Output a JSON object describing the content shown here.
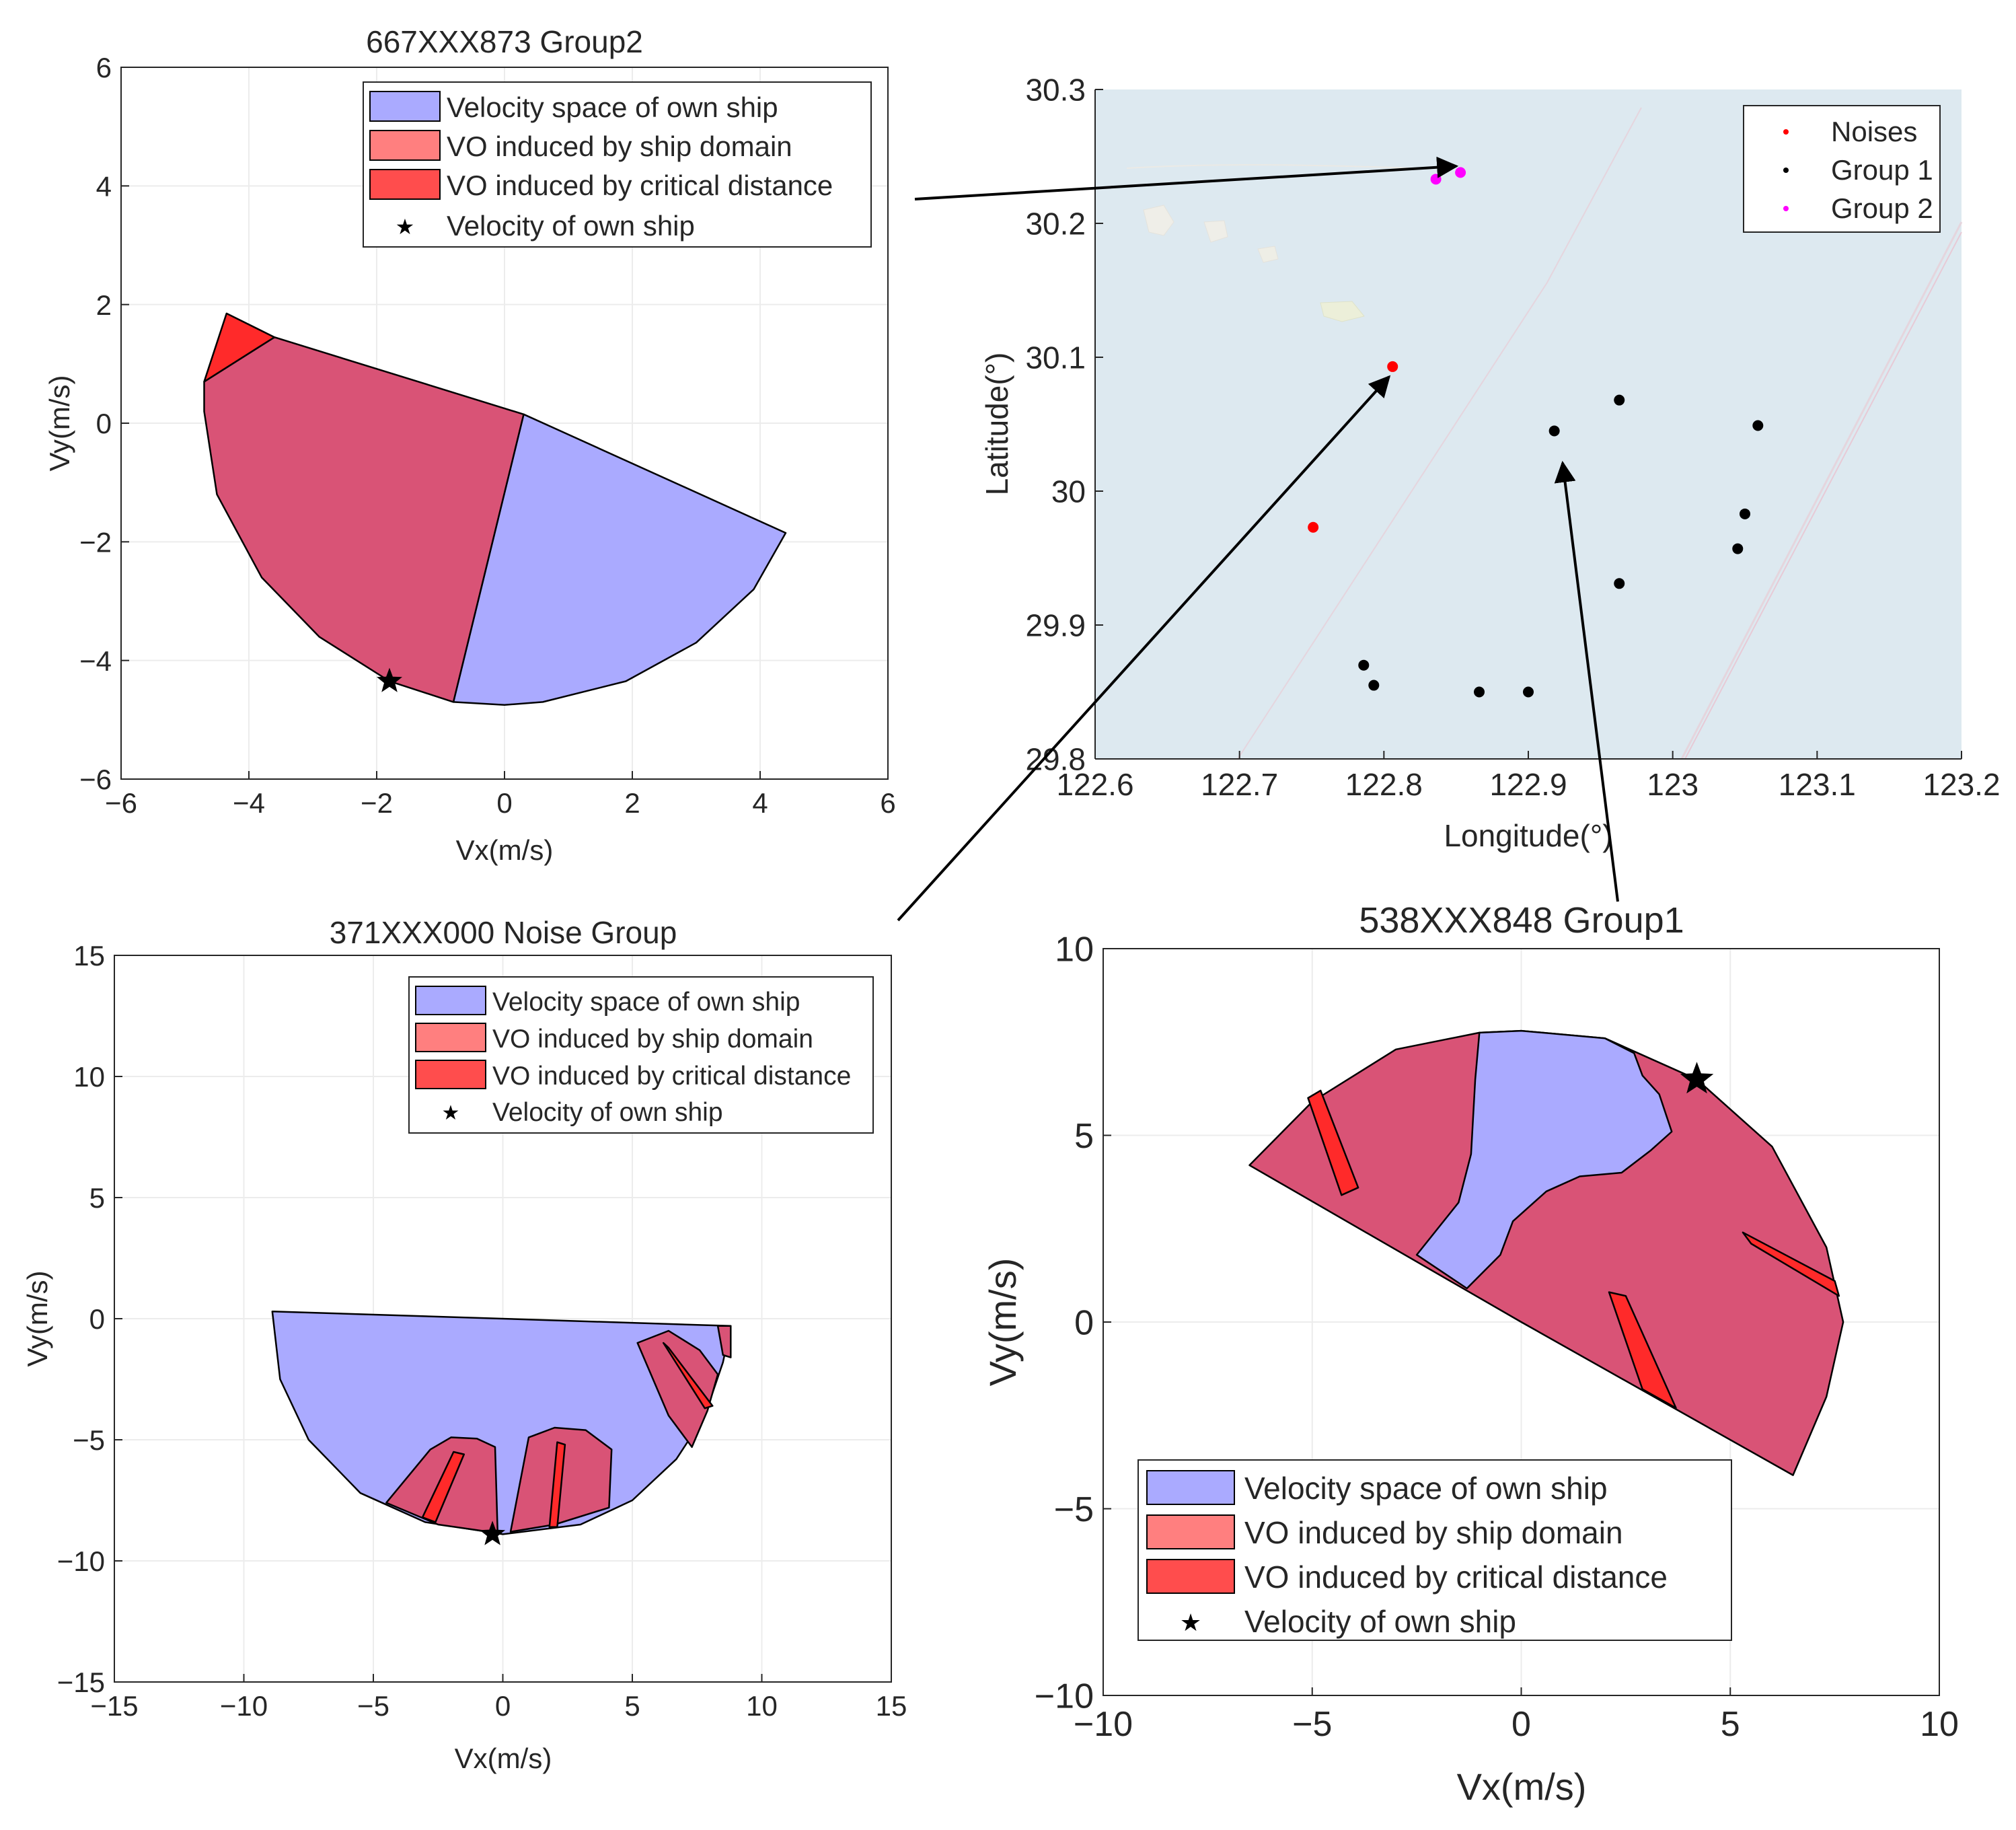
{
  "legend_common": {
    "own_space": "Velocity space of own ship",
    "vo_domain": "VO induced by ship domain",
    "vo_critical": "VO induced by critical distance",
    "own_velocity": "Velocity of own ship"
  },
  "colors": {
    "own_space": "#aaaaff",
    "vo_domain": "#d95376",
    "vo_domain_legend": "#ff7f7f",
    "vo_critical": "#ff2a2a",
    "sea": "#dde9f0",
    "noise": "#ff0000",
    "group1": "#000000",
    "group2": "#ff00ff"
  },
  "chart_data": [
    {
      "id": "p1",
      "type": "area",
      "title": "667XXX873 Group2",
      "xlabel": "Vx(m/s)",
      "ylabel": "Vy(m/s)",
      "xlim": [
        -6,
        6
      ],
      "ylim": [
        -6,
        6
      ],
      "xticks": [
        -6,
        -4,
        -2,
        0,
        2,
        4,
        6
      ],
      "yticks": [
        -6,
        -4,
        -2,
        0,
        2,
        4,
        6
      ],
      "grid": true,
      "legend_position": "top-right",
      "own_velocity": [
        -1.8,
        -4.35
      ],
      "regions": [
        {
          "kind": "own_space",
          "points": [
            [
              0.3,
              0.15
            ],
            [
              4.4,
              -1.85
            ],
            [
              3.9,
              -2.8
            ],
            [
              3.0,
              -3.7
            ],
            [
              1.9,
              -4.35
            ],
            [
              0.6,
              -4.7
            ],
            [
              0,
              -4.75
            ],
            [
              -0.8,
              -4.7
            ]
          ]
        },
        {
          "kind": "vo_domain",
          "points": [
            [
              -3.6,
              1.45
            ],
            [
              0.3,
              0.15
            ],
            [
              -0.8,
              -4.7
            ],
            [
              -1.8,
              -4.35
            ],
            [
              -2.9,
              -3.6
            ],
            [
              -3.8,
              -2.6
            ],
            [
              -4.5,
              -1.2
            ],
            [
              -4.7,
              0.2
            ],
            [
              -4.7,
              0.7
            ]
          ]
        },
        {
          "kind": "vo_critical",
          "points": [
            [
              -4.35,
              1.85
            ],
            [
              -3.6,
              1.45
            ],
            [
              -4.7,
              0.7
            ]
          ]
        }
      ]
    },
    {
      "id": "p2",
      "type": "scatter",
      "xlabel": "Longitude(°)",
      "ylabel": "Latitude(°)",
      "xlim": [
        122.6,
        123.2
      ],
      "ylim": [
        29.8,
        30.3
      ],
      "xticks": [
        122.6,
        122.7,
        122.8,
        122.9,
        123,
        123.1,
        123.2
      ],
      "xtick_labels": [
        "122.6",
        "122.7",
        "122.8",
        "122.9",
        "123",
        "123.1",
        "123.2"
      ],
      "yticks": [
        29.8,
        29.9,
        30,
        30.1,
        30.2,
        30.3
      ],
      "ytick_labels": [
        "29.8",
        "29.9",
        "30",
        "30.1",
        "30.2",
        "30.3"
      ],
      "legend_position": "top-right",
      "series": [
        {
          "name": "Noises",
          "kind": "noise",
          "points": [
            [
              122.806,
              30.093
            ],
            [
              122.751,
              29.973
            ]
          ]
        },
        {
          "name": "Group 1",
          "kind": "group1",
          "points": [
            [
              122.963,
              30.068
            ],
            [
              122.918,
              30.045
            ],
            [
              123.059,
              30.049
            ],
            [
              123.05,
              29.983
            ],
            [
              123.045,
              29.957
            ],
            [
              122.963,
              29.931
            ],
            [
              122.786,
              29.87
            ],
            [
              122.793,
              29.855
            ],
            [
              122.866,
              29.85
            ],
            [
              122.9,
              29.85
            ]
          ]
        },
        {
          "name": "Group 2",
          "kind": "group2",
          "points": [
            [
              122.836,
              30.233
            ],
            [
              122.853,
              30.238
            ]
          ]
        }
      ]
    },
    {
      "id": "p3",
      "type": "area",
      "title": "371XXX000 Noise Group",
      "xlabel": "Vx(m/s)",
      "ylabel": "Vy(m/s)",
      "xlim": [
        -15,
        15
      ],
      "ylim": [
        -15,
        15
      ],
      "xticks": [
        -15,
        -10,
        -5,
        0,
        5,
        10,
        15
      ],
      "yticks": [
        -15,
        -10,
        -5,
        0,
        5,
        10,
        15
      ],
      "grid": true,
      "legend_position": "top-right",
      "own_velocity": [
        -0.4,
        -8.9
      ],
      "regions": [
        {
          "kind": "own_space",
          "points": [
            [
              -8.9,
              0.3
            ],
            [
              8.8,
              -0.3
            ],
            [
              8.5,
              -1.8
            ],
            [
              7.8,
              -4.0
            ],
            [
              6.7,
              -5.8
            ],
            [
              5.0,
              -7.5
            ],
            [
              3.0,
              -8.5
            ],
            [
              0,
              -8.9
            ],
            [
              -3.0,
              -8.4
            ],
            [
              -5.5,
              -7.2
            ],
            [
              -7.5,
              -5.0
            ],
            [
              -8.6,
              -2.5
            ]
          ]
        },
        {
          "kind": "vo_domain",
          "points": [
            [
              -4.5,
              -7.6
            ],
            [
              -2.8,
              -5.4
            ],
            [
              -2.0,
              -4.9
            ],
            [
              -1.0,
              -4.95
            ],
            [
              -0.3,
              -5.3
            ],
            [
              -0.2,
              -8.85
            ],
            [
              -2.5,
              -8.5
            ]
          ]
        },
        {
          "kind": "vo_domain",
          "points": [
            [
              0.3,
              -8.8
            ],
            [
              1.0,
              -4.9
            ],
            [
              2.0,
              -4.5
            ],
            [
              3.2,
              -4.6
            ],
            [
              4.2,
              -5.4
            ],
            [
              4.1,
              -7.8
            ],
            [
              2.0,
              -8.5
            ]
          ]
        },
        {
          "kind": "vo_domain",
          "points": [
            [
              5.2,
              -1.0
            ],
            [
              6.4,
              -0.5
            ],
            [
              7.6,
              -1.3
            ],
            [
              8.3,
              -2.3
            ],
            [
              7.9,
              -3.8
            ],
            [
              7.3,
              -5.3
            ],
            [
              6.4,
              -4.0
            ]
          ]
        },
        {
          "kind": "vo_domain",
          "points": [
            [
              8.3,
              -0.3
            ],
            [
              8.8,
              -0.3
            ],
            [
              8.8,
              -1.6
            ],
            [
              8.5,
              -1.5
            ]
          ]
        },
        {
          "kind": "vo_critical",
          "points": [
            [
              -1.9,
              -5.5
            ],
            [
              -1.5,
              -5.6
            ],
            [
              -2.6,
              -8.4
            ],
            [
              -3.1,
              -8.2
            ]
          ]
        },
        {
          "kind": "vo_critical",
          "points": [
            [
              2.1,
              -5.1
            ],
            [
              2.4,
              -5.2
            ],
            [
              2.1,
              -8.6
            ],
            [
              1.8,
              -8.6
            ]
          ]
        },
        {
          "kind": "vo_critical",
          "points": [
            [
              6.2,
              -1.0
            ],
            [
              6.4,
              -1.2
            ],
            [
              8.1,
              -3.6
            ],
            [
              7.8,
              -3.7
            ]
          ]
        }
      ]
    },
    {
      "id": "p4",
      "type": "area",
      "title": "538XXX848 Group1",
      "xlabel": "Vx(m/s)",
      "ylabel": "Vy(m/s)",
      "xlim": [
        -10,
        10
      ],
      "ylim": [
        -10,
        10
      ],
      "xticks": [
        -10,
        -5,
        0,
        5,
        10
      ],
      "yticks": [
        -10,
        -5,
        0,
        5,
        10
      ],
      "grid": true,
      "legend_position": "bottom-left",
      "own_velocity": [
        4.2,
        6.5
      ],
      "regions": [
        {
          "kind": "vo_domain",
          "points": [
            [
              -6.5,
              4.2
            ],
            [
              -5.0,
              5.9
            ],
            [
              -3.0,
              7.3
            ],
            [
              -1.0,
              7.75
            ],
            [
              0,
              7.8
            ],
            [
              2.0,
              7.6
            ],
            [
              4.2,
              6.5
            ],
            [
              6.0,
              4.7
            ],
            [
              7.3,
              2.0
            ],
            [
              7.7,
              0
            ],
            [
              7.3,
              -2.0
            ],
            [
              6.5,
              -4.1
            ],
            [
              0,
              0
            ]
          ]
        },
        {
          "kind": "own_space",
          "points": [
            [
              -1.0,
              7.75
            ],
            [
              0,
              7.8
            ],
            [
              2.0,
              7.6
            ],
            [
              2.7,
              7.2
            ],
            [
              2.9,
              6.6
            ],
            [
              3.3,
              6.1
            ],
            [
              3.6,
              5.1
            ],
            [
              3.1,
              4.6
            ],
            [
              2.4,
              4.0
            ],
            [
              1.4,
              3.9
            ],
            [
              0.6,
              3.5
            ],
            [
              -0.2,
              2.7
            ],
            [
              -0.5,
              1.8
            ],
            [
              -1.3,
              0.9
            ],
            [
              -2.5,
              1.8
            ],
            [
              -1.5,
              3.2
            ],
            [
              -1.2,
              4.5
            ],
            [
              -1.1,
              6.5
            ]
          ]
        },
        {
          "kind": "vo_critical",
          "points": [
            [
              -5.1,
              6.0
            ],
            [
              -4.8,
              6.2
            ],
            [
              -3.9,
              3.6
            ],
            [
              -4.3,
              3.4
            ]
          ]
        },
        {
          "kind": "vo_critical",
          "points": [
            [
              5.3,
              2.4
            ],
            [
              5.5,
              2.1
            ],
            [
              7.6,
              0.7
            ],
            [
              7.5,
              1.1
            ]
          ]
        },
        {
          "kind": "vo_critical",
          "points": [
            [
              2.1,
              0.8
            ],
            [
              2.5,
              0.7
            ],
            [
              3.7,
              -2.3
            ],
            [
              2.9,
              -1.8
            ]
          ]
        }
      ]
    }
  ]
}
